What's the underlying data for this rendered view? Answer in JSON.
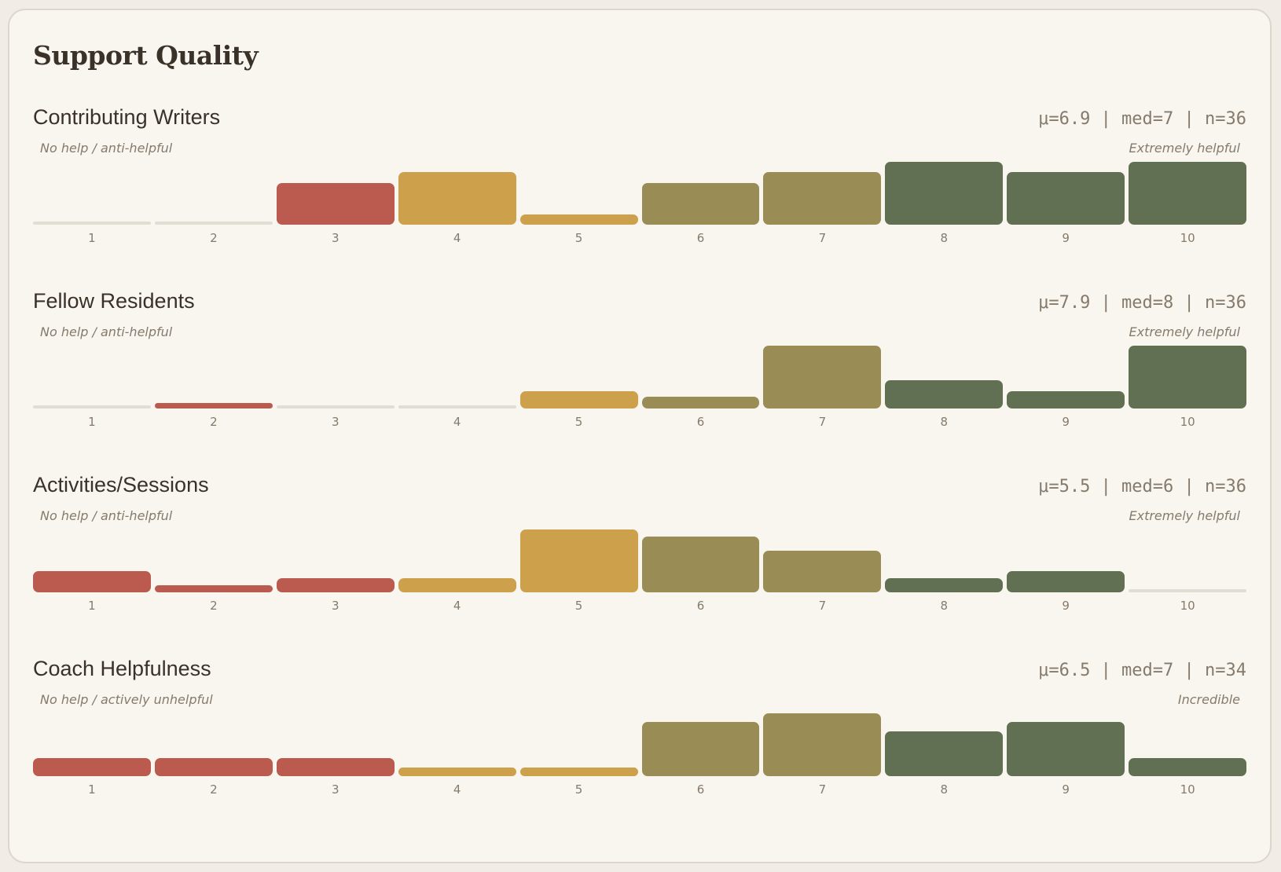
{
  "title": "Support Quality",
  "colors": {
    "low": "#bb5a4e",
    "mid": "#cda04c",
    "midhigh": "#998d55",
    "high": "#617052",
    "empty": "#e2ddd3"
  },
  "chart_data": [
    {
      "type": "bar",
      "title": "Contributing Writers",
      "stats": "μ=6.9 | med=7 | n=36",
      "low_label": "No help / anti-helpful",
      "high_label": "Extremely helpful",
      "categories": [
        "1",
        "2",
        "3",
        "4",
        "5",
        "6",
        "7",
        "8",
        "9",
        "10"
      ],
      "values": [
        0,
        0,
        4,
        5,
        1,
        4,
        5,
        6,
        5,
        6
      ]
    },
    {
      "type": "bar",
      "title": "Fellow Residents",
      "stats": "μ=7.9 | med=8 | n=36",
      "low_label": "No help / anti-helpful",
      "high_label": "Extremely helpful",
      "categories": [
        "1",
        "2",
        "3",
        "4",
        "5",
        "6",
        "7",
        "8",
        "9",
        "10"
      ],
      "values": [
        0,
        1,
        0,
        0,
        3,
        2,
        11,
        5,
        3,
        11
      ]
    },
    {
      "type": "bar",
      "title": "Activities/Sessions",
      "stats": "μ=5.5 | med=6 | n=36",
      "low_label": "No help / anti-helpful",
      "high_label": "Extremely helpful",
      "categories": [
        "1",
        "2",
        "3",
        "4",
        "5",
        "6",
        "7",
        "8",
        "9",
        "10"
      ],
      "values": [
        3,
        1,
        2,
        2,
        9,
        8,
        6,
        2,
        3,
        0
      ]
    },
    {
      "type": "bar",
      "title": "Coach Helpfulness",
      "stats": "μ=6.5 | med=7 | n=34",
      "low_label": "No help / actively unhelpful",
      "high_label": "Incredible",
      "categories": [
        "1",
        "2",
        "3",
        "4",
        "5",
        "6",
        "7",
        "8",
        "9",
        "10"
      ],
      "values": [
        2,
        2,
        2,
        1,
        1,
        6,
        7,
        5,
        6,
        2
      ]
    }
  ]
}
